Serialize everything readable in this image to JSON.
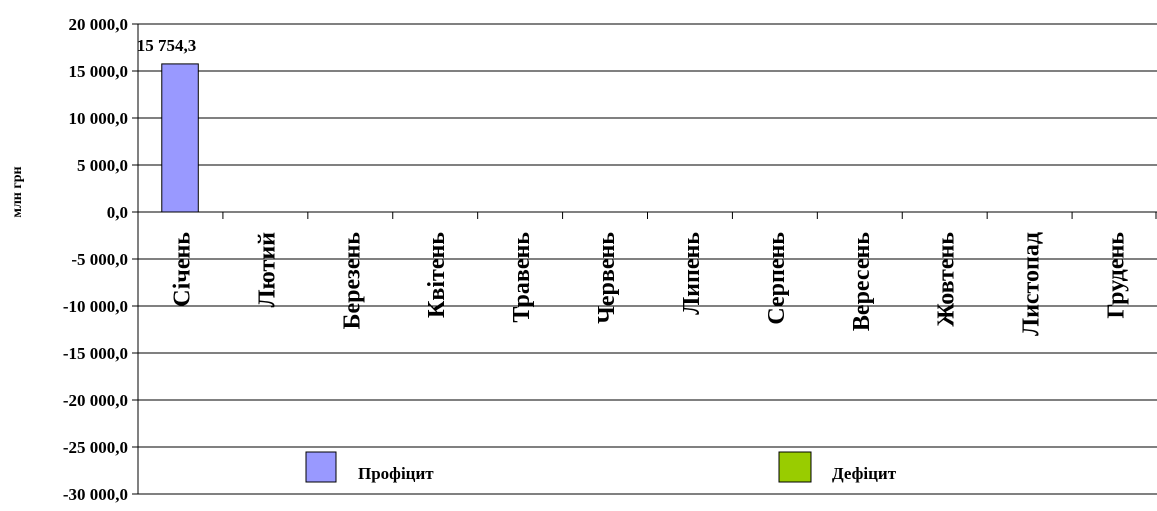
{
  "chart_data": {
    "type": "bar",
    "title": "",
    "xlabel": "",
    "ylabel": "млн грн",
    "ylim": [
      -30000,
      20000
    ],
    "y_ticks": [
      "20 000,0",
      "15 000,0",
      "10 000,0",
      "5 000,0",
      "0,0",
      "-5 000,0",
      "-10 000,0",
      "-15 000,0",
      "-20 000,0",
      "-25 000,0",
      "-30 000,0"
    ],
    "grid": true,
    "legend_position": "bottom",
    "categories": [
      "Січень",
      "Лютий",
      "Березень",
      "Квітень",
      "Травень",
      "Червень",
      "Липень",
      "Серпень",
      "Вересень",
      "Жовтень",
      "Листопад",
      "Грудень"
    ],
    "series": [
      {
        "name": "Профіцит",
        "color": "#9999ff",
        "values": [
          15754.3,
          null,
          null,
          null,
          null,
          null,
          null,
          null,
          null,
          null,
          null,
          null
        ],
        "data_labels": [
          "15 754,3",
          "",
          "",
          "",
          "",
          "",
          "",
          "",
          "",
          "",
          "",
          ""
        ]
      },
      {
        "name": "Дефіцит",
        "color": "#99cc00",
        "values": [
          null,
          null,
          null,
          null,
          null,
          null,
          null,
          null,
          null,
          null,
          null,
          null
        ],
        "data_labels": [
          "",
          "",
          "",
          "",
          "",
          "",
          "",
          "",
          "",
          "",
          "",
          ""
        ]
      }
    ]
  }
}
